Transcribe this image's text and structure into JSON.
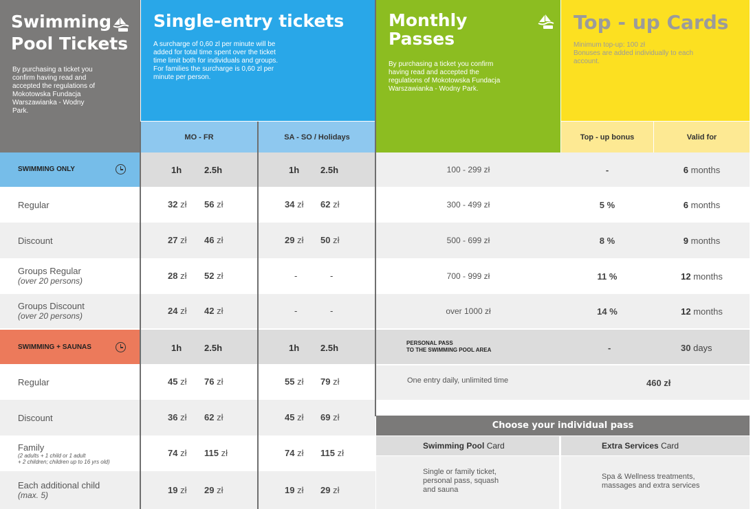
{
  "colors": {
    "gray_header": "#7b7a79",
    "blue_header": "#29a7e8",
    "green_header": "#8cbd21",
    "yellow_header": "#fce021",
    "light_blue": "#8ec8ef",
    "light_yellow": "#fde993",
    "swim_only": "#76bde9",
    "swim_saunas": "#ec7a5b"
  },
  "pool": {
    "title_line1": "Swimming",
    "title_line2": "Pool Tickets",
    "text": "By purchasing a ticket you confirm having read and accepted the regulations of Mokotowska Fundacja Warszawianka - Wodny Park."
  },
  "single": {
    "title": "Single-entry tickets",
    "text": "A surcharge of 0,60 zl per minute will be added for total time spent over the ticket time limit both for individuals and groups. For families the surcharge is 0,60 zl per minute per person.",
    "col_weekday": "MO - FR",
    "col_weekend": "SA - SO / Holidays"
  },
  "monthly": {
    "title_line1": "Monthly",
    "title_line2": "Passes",
    "text": "By purchasing a ticket you confirm having read and accepted the regulations of Mokotowska Fundacja Warszawianka - Wodny Park."
  },
  "topup": {
    "title": "Top - up Cards",
    "text_line1": "Minimum top-up: 100 zł",
    "text_line2": "Bonuses are added individually to each account.",
    "col_bonus": "Top - up bonus",
    "col_valid": "Valid for"
  },
  "sections": {
    "swim_only": "SWIMMING ONLY",
    "swim_saunas": "SWIMMING + SAUNAS",
    "h1": "1h",
    "h25": "2.5h"
  },
  "rows": [
    {
      "label": "Regular",
      "sub": "",
      "w1": "32",
      "w2": "56",
      "s1": "34",
      "s2": "62"
    },
    {
      "label": "Discount",
      "sub": "",
      "w1": "27",
      "w2": "46",
      "s1": "29",
      "s2": "50"
    },
    {
      "label": "Groups Regular",
      "sub": "(over 20 persons)",
      "w1": "28",
      "w2": "52",
      "s1": "-",
      "s2": "-"
    },
    {
      "label": "Groups Discount",
      "sub": "(over 20 persons)",
      "w1": "24",
      "w2": "42",
      "s1": "-",
      "s2": "-"
    },
    {
      "label": "Regular",
      "sub": "",
      "w1": "45",
      "w2": "76",
      "s1": "55",
      "s2": "79"
    },
    {
      "label": "Discount",
      "sub": "",
      "w1": "36",
      "w2": "62",
      "s1": "45",
      "s2": "69"
    },
    {
      "label": "Family",
      "sub": "(2 adults + 1 child or 1 adult",
      "sub2": "+ 2 children; children up to 16 yrs old)",
      "w1": "74",
      "w2": "115",
      "s1": "74",
      "s2": "115"
    },
    {
      "label": "Each additional child",
      "sub": "(max. 5)",
      "w1": "19",
      "w2": "29",
      "s1": "19",
      "s2": "29"
    }
  ],
  "currency": "zł",
  "topup_rows": [
    {
      "range": "100 - 299 zł",
      "bonus": "-",
      "valid_num": "6",
      "valid_unit": "months"
    },
    {
      "range": "300 - 499 zł",
      "bonus": "5 %",
      "valid_num": "6",
      "valid_unit": "months"
    },
    {
      "range": "500 - 699 zł",
      "bonus": "8 %",
      "valid_num": "9",
      "valid_unit": "months"
    },
    {
      "range": "700 - 999 zł",
      "bonus": "11 %",
      "valid_num": "12",
      "valid_unit": "months"
    },
    {
      "range": "over 1000 zł",
      "bonus": "14 %",
      "valid_num": "12",
      "valid_unit": "months"
    }
  ],
  "personal_pass": {
    "line1": "PERSONAL PASS",
    "line2": "TO THE SWIMMING POOL AREA",
    "bonus": "-",
    "valid_num": "30",
    "valid_unit": "days",
    "entry_text": "One entry daily, unlimited time",
    "price": "460 zł"
  },
  "individual": {
    "title": "Choose your individual pass",
    "card1_bold": "Swimming Pool",
    "card1_rest": "Card",
    "card1_text_1": "Single or family ticket,",
    "card1_text_2": "personal pass, squash",
    "card1_text_3": "and sauna",
    "card2_bold": "Extra Services",
    "card2_rest": "Card",
    "card2_text_1": "Spa & Wellness treatments,",
    "card2_text_2": "massages and extra services"
  }
}
